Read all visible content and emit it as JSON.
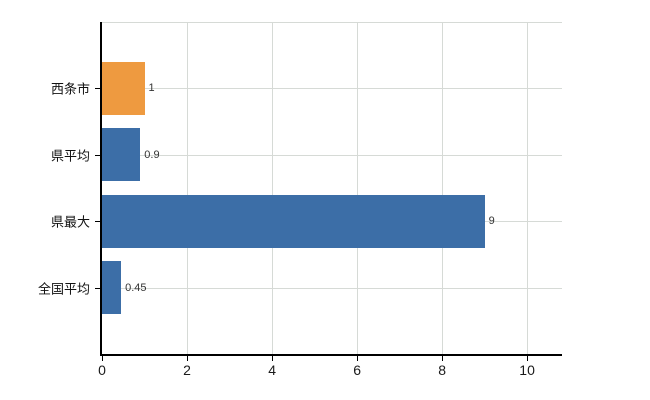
{
  "chart_data": {
    "type": "bar",
    "orientation": "horizontal",
    "title": "",
    "xlabel": "",
    "ylabel": "",
    "categories": [
      "西条市",
      "県平均",
      "県最大",
      "全国平均"
    ],
    "values": [
      1,
      0.9,
      9,
      0.45
    ],
    "value_labels": [
      "1",
      "0.9",
      "9",
      "0.45"
    ],
    "bar_colors": [
      "#ee9a40",
      "#3c6ea7",
      "#3c6ea7",
      "#3c6ea7"
    ],
    "xticks": [
      0,
      2,
      4,
      6,
      8,
      10
    ],
    "xlim": [
      0,
      10.82
    ],
    "grid": true,
    "legend": null,
    "colors": {
      "axis": "#000000",
      "grid": "#d6dad6",
      "value_label": "#333333",
      "category_label": "#111111",
      "background": "#ffffff"
    }
  }
}
